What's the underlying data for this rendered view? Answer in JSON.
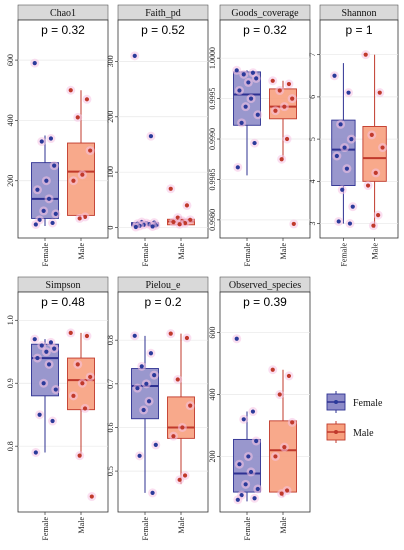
{
  "colors": {
    "female_fill": "#8e8cc8",
    "female_stroke": "#2e3192",
    "female_point": "#2b3a9a",
    "male_fill": "#f7a07e",
    "male_stroke": "#c0392b",
    "male_point": "#c0392b",
    "jitter_glow": "#f6c2e4",
    "strip_bg": "#d9d9d9",
    "grid": "#e8e8e8"
  },
  "legend": {
    "entries": [
      {
        "label": "Female",
        "group": "female"
      },
      {
        "label": "Male",
        "group": "male"
      }
    ],
    "position": "right"
  },
  "chart_data": [
    {
      "type": "box",
      "title": "Chao1",
      "pvalue": "p = 0.32",
      "categories": [
        "Female",
        "Male"
      ],
      "ylim": [
        30,
        660
      ],
      "yticks": [
        200,
        400,
        600
      ],
      "ytick_labels": [
        "200",
        "400",
        "600"
      ],
      "series": [
        {
          "name": "Female",
          "q1": 75,
          "median": 140,
          "q3": 260,
          "whisker_low": 50,
          "whisker_high": 350,
          "points": [
            590,
            340,
            330,
            250,
            200,
            170,
            140,
            100,
            90,
            70,
            60,
            55
          ]
        },
        {
          "name": "Male",
          "q1": 85,
          "median": 230,
          "q3": 325,
          "whisker_low": 70,
          "whisker_high": 500,
          "points": [
            500,
            470,
            410,
            300,
            220,
            200,
            80,
            75
          ]
        }
      ]
    },
    {
      "type": "box",
      "title": "Faith_pd",
      "pvalue": "p = 0.52",
      "categories": [
        "Female",
        "Male"
      ],
      "ylim": [
        -8,
        335
      ],
      "yticks": [
        0,
        100,
        200,
        300
      ],
      "ytick_labels": [
        "0",
        "100",
        "200",
        "300"
      ],
      "series": [
        {
          "name": "Female",
          "q1": 3,
          "median": 6,
          "q3": 9,
          "whisker_low": 1,
          "whisker_high": 12,
          "points": [
            310,
            165,
            10,
            9,
            8,
            7,
            6,
            5,
            4,
            3,
            2,
            1
          ]
        },
        {
          "name": "Male",
          "q1": 5,
          "median": 11,
          "q3": 15,
          "whisker_low": 3,
          "whisker_high": 20,
          "points": [
            70,
            40,
            18,
            14,
            12,
            10,
            8,
            6
          ]
        }
      ]
    },
    {
      "type": "box",
      "title": "Goods_coverage",
      "pvalue": "p = 0.32",
      "categories": [
        "Female",
        "Male"
      ],
      "ylim": [
        0.99785,
        1.0002
      ],
      "yticks": [
        0.998,
        0.9985,
        0.999,
        0.9995,
        1.0
      ],
      "ytick_labels": [
        "0.9980",
        "0.9985",
        "0.9990",
        "0.9995",
        "1.0000"
      ],
      "series": [
        {
          "name": "Female",
          "q1": 0.99917,
          "median": 0.99955,
          "q3": 0.99983,
          "whisker_low": 0.99855,
          "whisker_high": 0.99985,
          "points": [
            0.99985,
            0.99982,
            0.9998,
            0.99975,
            0.9997,
            0.9996,
            0.9995,
            0.9994,
            0.9993,
            0.9992,
            0.99895,
            0.99865
          ]
        },
        {
          "name": "Male",
          "q1": 0.99925,
          "median": 0.9994,
          "q3": 0.99962,
          "whisker_low": 0.99875,
          "whisker_high": 0.99972,
          "points": [
            0.99972,
            0.99968,
            0.9996,
            0.9995,
            0.9994,
            0.99935,
            0.999,
            0.99875,
            0.99795
          ]
        }
      ]
    },
    {
      "type": "box",
      "title": "Shannon",
      "pvalue": "p = 1",
      "categories": [
        "Female",
        "Male"
      ],
      "ylim": [
        2.8,
        7.3
      ],
      "yticks": [
        3,
        4,
        5,
        6,
        7
      ],
      "ytick_labels": [
        "3",
        "4",
        "5",
        "6",
        "7"
      ],
      "series": [
        {
          "name": "Female",
          "q1": 3.9,
          "median": 4.75,
          "q3": 5.45,
          "whisker_low": 3.0,
          "whisker_high": 6.8,
          "points": [
            6.5,
            6.1,
            5.35,
            5.0,
            4.8,
            4.6,
            4.3,
            3.8,
            3.4,
            3.05,
            3.0
          ]
        },
        {
          "name": "Male",
          "q1": 4.0,
          "median": 4.55,
          "q3": 5.3,
          "whisker_low": 2.9,
          "whisker_high": 7.0,
          "points": [
            7.0,
            6.1,
            5.1,
            4.8,
            4.2,
            3.9,
            3.2,
            2.95
          ]
        }
      ]
    },
    {
      "type": "box",
      "title": "Simpson",
      "pvalue": "p = 0.48",
      "categories": [
        "Female",
        "Male"
      ],
      "ylim": [
        0.705,
        1.01
      ],
      "yticks": [
        0.8,
        0.9,
        1.0
      ],
      "ytick_labels": [
        "0.8",
        "0.9",
        "1.0"
      ],
      "series": [
        {
          "name": "Female",
          "q1": 0.88,
          "median": 0.94,
          "q3": 0.962,
          "whisker_low": 0.79,
          "whisker_high": 0.97,
          "points": [
            0.97,
            0.965,
            0.96,
            0.955,
            0.95,
            0.94,
            0.93,
            0.9,
            0.89,
            0.85,
            0.84,
            0.79
          ]
        },
        {
          "name": "Male",
          "q1": 0.858,
          "median": 0.905,
          "q3": 0.94,
          "whisker_low": 0.785,
          "whisker_high": 0.98,
          "points": [
            0.98,
            0.975,
            0.93,
            0.91,
            0.9,
            0.88,
            0.86,
            0.785,
            0.72
          ]
        }
      ]
    },
    {
      "type": "box",
      "title": "Pielou_e",
      "pvalue": "p = 0.2",
      "categories": [
        "Female",
        "Male"
      ],
      "ylim": [
        0.42,
        0.86
      ],
      "yticks": [
        0.5,
        0.6,
        0.7,
        0.8
      ],
      "ytick_labels": [
        "0.5",
        "0.6",
        "0.7",
        "0.8"
      ],
      "series": [
        {
          "name": "Female",
          "q1": 0.62,
          "median": 0.695,
          "q3": 0.735,
          "whisker_low": 0.45,
          "whisker_high": 0.81,
          "points": [
            0.81,
            0.77,
            0.74,
            0.72,
            0.7,
            0.69,
            0.66,
            0.64,
            0.56,
            0.535,
            0.45
          ]
        },
        {
          "name": "Male",
          "q1": 0.575,
          "median": 0.6,
          "q3": 0.67,
          "whisker_low": 0.47,
          "whisker_high": 0.815,
          "points": [
            0.815,
            0.805,
            0.71,
            0.65,
            0.6,
            0.58,
            0.49,
            0.48
          ]
        }
      ]
    },
    {
      "type": "box",
      "title": "Observed_species",
      "pvalue": "p = 0.39",
      "categories": [
        "Female",
        "Male"
      ],
      "ylim": [
        40,
        660
      ],
      "yticks": [
        200,
        400,
        600
      ],
      "ytick_labels": [
        "200",
        "400",
        "600"
      ],
      "series": [
        {
          "name": "Female",
          "q1": 85,
          "median": 145,
          "q3": 255,
          "whisker_low": 55,
          "whisker_high": 345,
          "points": [
            580,
            345,
            320,
            250,
            200,
            175,
            150,
            110,
            95,
            75,
            65,
            60
          ]
        },
        {
          "name": "Male",
          "q1": 85,
          "median": 220,
          "q3": 315,
          "whisker_low": 70,
          "whisker_high": 480,
          "points": [
            480,
            460,
            400,
            310,
            230,
            200,
            90,
            80
          ]
        }
      ]
    }
  ]
}
